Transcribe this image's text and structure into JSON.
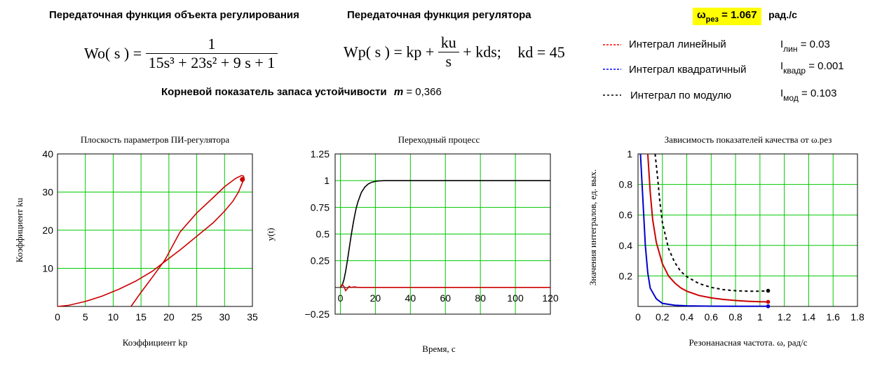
{
  "header": {
    "object_tf_title": "Передаточная функция объекта регулирования",
    "regulator_tf_title": "Передаточная функция регулятора",
    "stability_label": "Корневой показатель запаса устойчивости",
    "stability_var": "m",
    "stability_value": "= 0,366"
  },
  "formulas": {
    "wo_lhs": "Wo( s ) =",
    "wo_num": "1",
    "wo_den": "15s³ + 23s² + 9 s + 1",
    "wp_lhs": "Wp( s ) = kp +",
    "wp_frac_num": "ku",
    "wp_frac_den": "s",
    "wp_tail": "+ kds;",
    "kd": "kd = 45"
  },
  "resonance": {
    "label": "ω",
    "sub": "рез",
    "value": "= 1.067",
    "unit": "рад./с"
  },
  "legend": {
    "items": [
      {
        "line_color": "#ff0000",
        "label": "Интеграл линейный",
        "sym": "I",
        "sub": "лин",
        "value": "= 0.03"
      },
      {
        "line_color": "#0000ff",
        "label": "Интеграл квадратичный",
        "sym": "I",
        "sub": "квадр",
        "value": "= 0.001"
      },
      {
        "line_color": "#000000",
        "label": "Интеграл по модулю",
        "sym": "I",
        "sub": "мод",
        "value": "= 0.103"
      }
    ]
  },
  "colors": {
    "grid": "#00c800",
    "red": "#cc0000",
    "blue": "#0000cc",
    "black": "#000000"
  },
  "chart_data": [
    {
      "type": "line",
      "title": "Плоскость параметров ПИ-регулятора",
      "xlabel": "Коэффициент kp",
      "ylabel": "Коэффициент ku",
      "xlim": [
        0,
        35
      ],
      "ylim": [
        0,
        40
      ],
      "xticks": [
        "0",
        "5",
        "10",
        "15",
        "20",
        "25",
        "30",
        "35"
      ],
      "yticks": [
        "10",
        "20",
        "30",
        "40"
      ],
      "grid": true,
      "series": [
        {
          "color": "#cc0000",
          "x": [
            0,
            2,
            5,
            8,
            11,
            14,
            17,
            19.3,
            22,
            25,
            28,
            30,
            31.5,
            32.5,
            33.1,
            33.5,
            33.4,
            33,
            32,
            30,
            28,
            25,
            22,
            19.3,
            17,
            15,
            13.2
          ],
          "y": [
            0,
            0.3,
            1.3,
            2.7,
            4.5,
            6.6,
            9.2,
            11.8,
            14.8,
            18.4,
            22,
            25,
            27.6,
            30,
            32.1,
            33.6,
            34.2,
            34.3,
            33.6,
            31.4,
            28.6,
            24.5,
            19.5,
            12.2,
            7.6,
            3.7,
            0
          ]
        },
        {
          "color": "#cc0000",
          "marker_only": true,
          "x": [
            33.2
          ],
          "y": [
            33.3
          ]
        }
      ]
    },
    {
      "type": "line",
      "title": "Переходный процесс",
      "xlabel": "Время, с",
      "ylabel": "y(t)",
      "xlim": [
        -3,
        120
      ],
      "ylim": [
        -0.25,
        1.25
      ],
      "xticks": [
        "0",
        "20",
        "40",
        "60",
        "80",
        "100",
        "120"
      ],
      "yticks": [
        "−0.25",
        "0.25",
        "0.5",
        "0.75",
        "1",
        "1.25"
      ],
      "grid": true,
      "series": [
        {
          "color": "#000000",
          "x": [
            0,
            1,
            2,
            3,
            4,
            5,
            6,
            7,
            8,
            9,
            10,
            12,
            14,
            16,
            18,
            20,
            22,
            25,
            30,
            40,
            120
          ],
          "y": [
            0,
            0.02,
            0.07,
            0.15,
            0.25,
            0.36,
            0.47,
            0.57,
            0.66,
            0.74,
            0.8,
            0.89,
            0.94,
            0.97,
            0.985,
            0.993,
            0.997,
            1,
            1,
            1,
            1
          ]
        },
        {
          "color": "#cc0000",
          "x": [
            0,
            1,
            2,
            3,
            4,
            5,
            6,
            8,
            10,
            14,
            20,
            120
          ],
          "y": [
            0,
            0.03,
            0.01,
            -0.03,
            -0.01,
            0.01,
            0,
            0.005,
            0,
            0,
            0,
            0
          ]
        }
      ]
    },
    {
      "type": "line",
      "title": "Зависимость показателей качества от ω.рез",
      "xlabel": "Резонанасная частота. ω, рад/с",
      "ylabel": "Значения интегралов, ед. вых.",
      "xlim": [
        0,
        1.8
      ],
      "ylim": [
        0,
        1
      ],
      "xticks": [
        "0",
        "0.2",
        "0.4",
        "0.6",
        "0.8",
        "1",
        "1.2",
        "1.4",
        "1.6",
        "1.8"
      ],
      "yticks": [
        "0.2",
        "0.4",
        "0.6",
        "0.8",
        "1"
      ],
      "grid": true,
      "series": [
        {
          "color": "#cc0000",
          "width": 2,
          "x": [
            0.08,
            0.1,
            0.12,
            0.15,
            0.2,
            0.25,
            0.3,
            0.35,
            0.4,
            0.5,
            0.6,
            0.7,
            0.8,
            0.9,
            1.0,
            1.067
          ],
          "y": [
            1,
            0.75,
            0.57,
            0.42,
            0.28,
            0.2,
            0.155,
            0.122,
            0.1,
            0.072,
            0.056,
            0.046,
            0.039,
            0.034,
            0.031,
            0.03
          ]
        },
        {
          "color": "#0000cc",
          "width": 2,
          "x": [
            0.02,
            0.04,
            0.06,
            0.08,
            0.1,
            0.15,
            0.2,
            0.3,
            0.4,
            0.6,
            0.8,
            1.067
          ],
          "y": [
            1,
            0.7,
            0.4,
            0.22,
            0.12,
            0.05,
            0.02,
            0.008,
            0.004,
            0.002,
            0.001,
            0.001
          ]
        },
        {
          "color": "#000000",
          "width": 2,
          "dash": true,
          "x": [
            0.14,
            0.16,
            0.18,
            0.2,
            0.25,
            0.3,
            0.35,
            0.4,
            0.5,
            0.6,
            0.7,
            0.8,
            0.9,
            1.0,
            1.067
          ],
          "y": [
            1,
            0.85,
            0.68,
            0.55,
            0.38,
            0.29,
            0.23,
            0.195,
            0.15,
            0.125,
            0.11,
            0.103,
            0.1,
            0.1,
            0.103
          ]
        }
      ]
    }
  ]
}
